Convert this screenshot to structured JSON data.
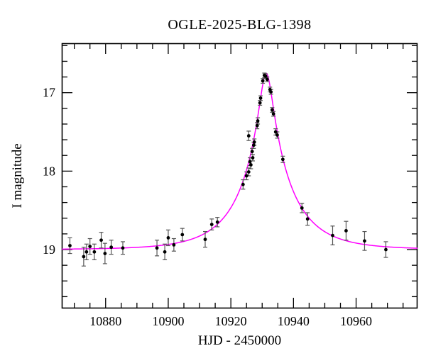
{
  "figure": {
    "title": "OGLE-2025-BLG-1398",
    "xlabel": "HJD - 2450000",
    "ylabel": "I magnitude"
  },
  "colors": {
    "background": "#ffffff",
    "frame": "#000000",
    "marker": "#000000",
    "errorbar": "#555555",
    "model_curve": "#ff00ff"
  },
  "chart_data": {
    "type": "scatter",
    "title": "OGLE-2025-BLG-1398",
    "xlabel": "HJD - 2450000",
    "ylabel": "I magnitude",
    "x_range": [
      10866,
      10979.6
    ],
    "y_range": [
      16.37,
      19.75
    ],
    "y_axis_inverted_magnitude": true,
    "grid": false,
    "legend": null,
    "x_major_ticks": [
      10880,
      10900,
      10920,
      10940,
      10960
    ],
    "x_minor_step": 5,
    "y_major_ticks": [
      17,
      18,
      19
    ],
    "y_minor_step": 0.2,
    "model_curve": {
      "model": "paczynski-microlensing",
      "t0": 10931.3,
      "tE": 15.8,
      "u0": 0.127,
      "baseline_mag": 19.0,
      "color": "#ff00ff"
    },
    "points_format": [
      "t_hjd_minus_2450000",
      "i_magnitude",
      "mag_error"
    ],
    "points": [
      [
        10868.6,
        18.95,
        0.1
      ],
      [
        10873.0,
        19.09,
        0.12
      ],
      [
        10873.9,
        19.03,
        0.1
      ],
      [
        10875.0,
        18.96,
        0.1
      ],
      [
        10876.4,
        19.03,
        0.1
      ],
      [
        10878.6,
        18.88,
        0.1
      ],
      [
        10879.8,
        19.05,
        0.13
      ],
      [
        10881.8,
        18.97,
        0.09
      ],
      [
        10885.5,
        18.98,
        0.08
      ],
      [
        10896.4,
        18.98,
        0.1
      ],
      [
        10898.9,
        19.03,
        0.1
      ],
      [
        10900.0,
        18.85,
        0.1
      ],
      [
        10901.8,
        18.94,
        0.08
      ],
      [
        10904.5,
        18.81,
        0.08
      ],
      [
        10911.8,
        18.87,
        0.1
      ],
      [
        10913.9,
        18.68,
        0.07
      ],
      [
        10915.7,
        18.65,
        0.06
      ],
      [
        10923.9,
        18.17,
        0.06
      ],
      [
        10925.0,
        18.06,
        0.05
      ],
      [
        10925.7,
        18.01,
        0.05
      ],
      [
        10925.7,
        17.55,
        0.06
      ],
      [
        10926.1,
        17.88,
        0.05
      ],
      [
        10926.4,
        17.92,
        0.05
      ],
      [
        10926.8,
        17.75,
        0.04
      ],
      [
        10927.0,
        17.83,
        0.04
      ],
      [
        10927.3,
        17.67,
        0.04
      ],
      [
        10927.5,
        17.63,
        0.04
      ],
      [
        10928.4,
        17.42,
        0.04
      ],
      [
        10928.6,
        17.36,
        0.04
      ],
      [
        10929.3,
        17.13,
        0.03
      ],
      [
        10929.5,
        17.07,
        0.03
      ],
      [
        10930.2,
        16.85,
        0.03
      ],
      [
        10930.7,
        16.78,
        0.03
      ],
      [
        10931.1,
        16.79,
        0.03
      ],
      [
        10931.6,
        16.83,
        0.03
      ],
      [
        10932.5,
        16.96,
        0.03
      ],
      [
        10932.8,
        16.99,
        0.03
      ],
      [
        10933.2,
        17.22,
        0.03
      ],
      [
        10933.6,
        17.27,
        0.03
      ],
      [
        10934.3,
        17.5,
        0.04
      ],
      [
        10934.8,
        17.54,
        0.04
      ],
      [
        10936.6,
        17.85,
        0.04
      ],
      [
        10942.7,
        18.47,
        0.06
      ],
      [
        10944.5,
        18.61,
        0.08
      ],
      [
        10952.5,
        18.82,
        0.12
      ],
      [
        10956.8,
        18.76,
        0.12
      ],
      [
        10962.7,
        18.89,
        0.12
      ],
      [
        10969.5,
        19.0,
        0.1
      ]
    ]
  }
}
